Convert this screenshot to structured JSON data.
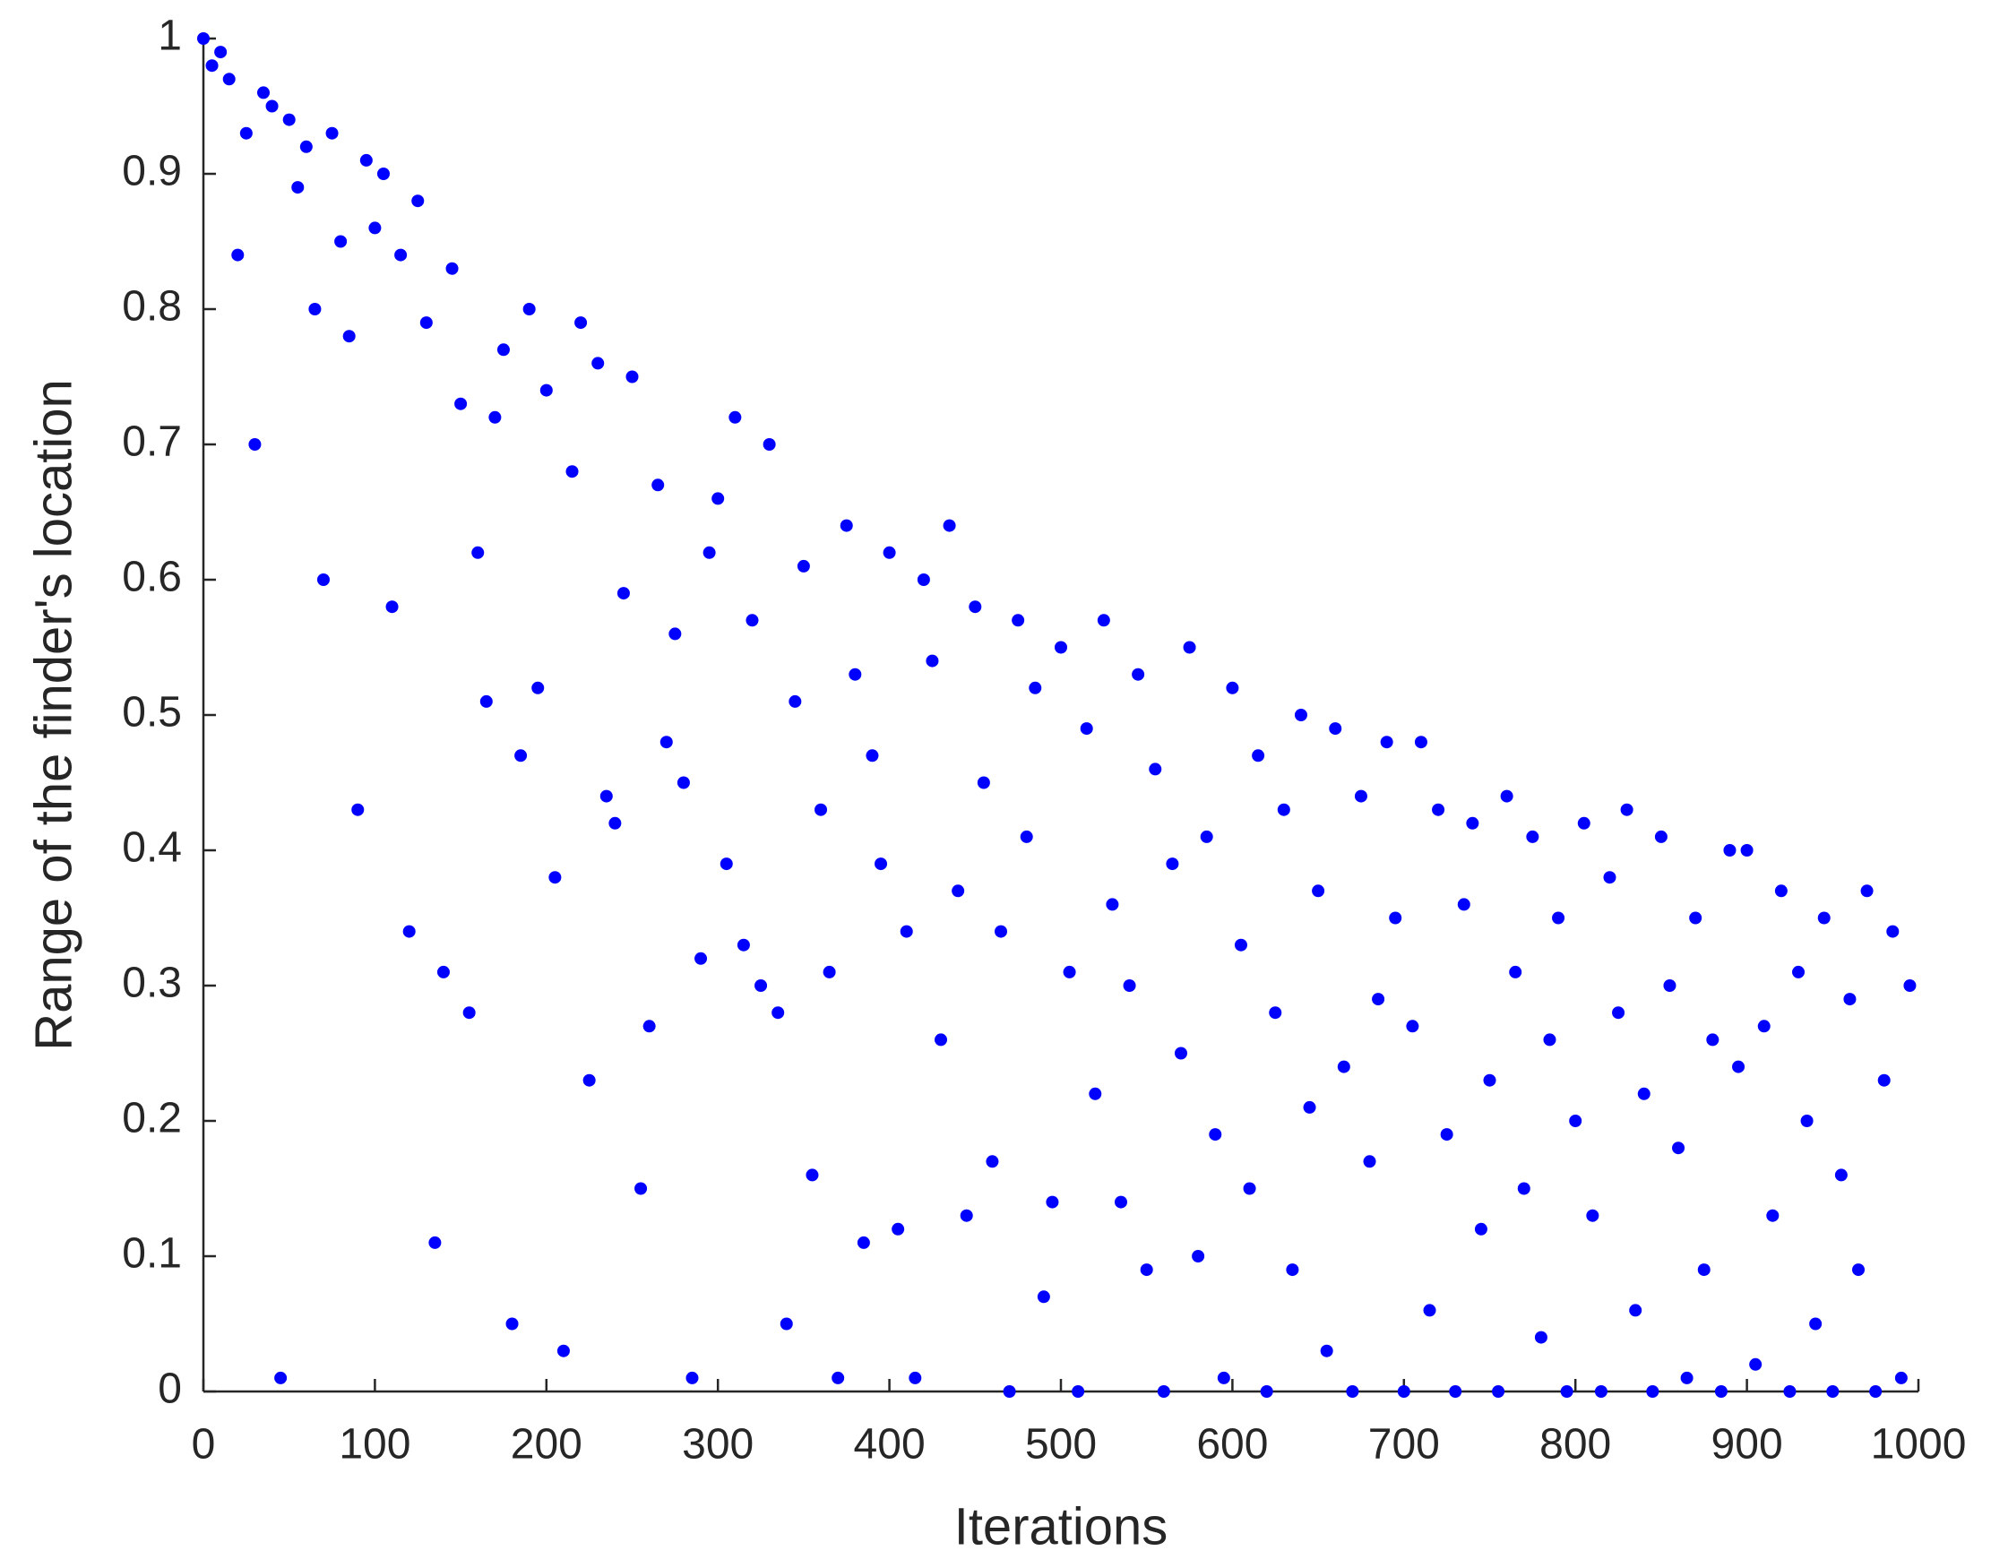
{
  "chart_data": {
    "type": "scatter",
    "x_label": "Iterations",
    "y_label": "Range of the finder's location",
    "color": "#0000ff",
    "xlim": [
      0,
      1000
    ],
    "xticks": [
      0,
      100,
      200,
      300,
      400,
      500,
      600,
      700,
      800,
      900,
      1000
    ],
    "ylim": [
      0,
      1
    ],
    "yticks": [
      0,
      0.1,
      0.2,
      0.3,
      0.4,
      0.5,
      0.6,
      0.7,
      0.8,
      0.9,
      1
    ],
    "x": [
      0,
      5,
      10,
      15,
      20,
      25,
      30,
      35,
      40,
      45,
      50,
      55,
      60,
      65,
      70,
      75,
      80,
      85,
      90,
      95,
      100,
      105,
      110,
      115,
      120,
      125,
      130,
      135,
      140,
      145,
      150,
      155,
      160,
      165,
      170,
      175,
      180,
      185,
      190,
      195,
      200,
      205,
      210,
      215,
      220,
      225,
      230,
      235,
      240,
      245,
      250,
      255,
      260,
      265,
      270,
      275,
      280,
      285,
      290,
      295,
      300,
      305,
      310,
      315,
      320,
      325,
      330,
      335,
      340,
      345,
      350,
      355,
      360,
      365,
      370,
      375,
      380,
      385,
      390,
      395,
      400,
      405,
      410,
      415,
      420,
      425,
      430,
      435,
      440,
      445,
      450,
      455,
      460,
      465,
      470,
      475,
      480,
      485,
      490,
      495,
      500,
      505,
      510,
      515,
      520,
      525,
      530,
      535,
      540,
      545,
      550,
      555,
      560,
      565,
      570,
      575,
      580,
      585,
      590,
      595,
      600,
      605,
      610,
      615,
      620,
      625,
      630,
      635,
      640,
      645,
      650,
      655,
      660,
      665,
      670,
      675,
      680,
      685,
      690,
      695,
      700,
      705,
      710,
      715,
      720,
      725,
      730,
      735,
      740,
      745,
      750,
      755,
      760,
      765,
      770,
      775,
      780,
      785,
      790,
      795,
      800,
      805,
      810,
      815,
      820,
      825,
      830,
      835,
      840,
      845,
      850,
      855,
      860,
      865,
      870,
      875,
      880,
      885,
      890,
      895,
      900,
      905,
      910,
      915,
      920,
      925,
      930,
      935,
      940,
      945,
      950,
      955,
      960,
      965,
      970,
      975,
      980,
      985,
      990,
      995
    ],
    "values": [
      1.0,
      0.98,
      0.99,
      0.97,
      0.84,
      0.93,
      0.7,
      0.96,
      0.95,
      0.01,
      0.94,
      0.89,
      0.92,
      0.8,
      0.6,
      0.93,
      0.85,
      0.78,
      0.43,
      0.91,
      0.86,
      0.9,
      0.58,
      0.84,
      0.34,
      0.88,
      0.79,
      0.11,
      0.31,
      0.83,
      0.73,
      0.28,
      0.62,
      0.51,
      0.72,
      0.77,
      0.05,
      0.47,
      0.8,
      0.52,
      0.74,
      0.38,
      0.03,
      0.68,
      0.79,
      0.23,
      0.76,
      0.44,
      0.42,
      0.59,
      0.75,
      0.15,
      0.27,
      0.67,
      0.48,
      0.56,
      0.45,
      0.01,
      0.32,
      0.62,
      0.66,
      0.39,
      0.72,
      0.33,
      0.57,
      0.3,
      0.7,
      0.28,
      0.05,
      0.51,
      0.61,
      0.16,
      0.43,
      0.31,
      0.01,
      0.64,
      0.53,
      0.11,
      0.47,
      0.39,
      0.62,
      0.12,
      0.34,
      0.01,
      0.6,
      0.54,
      0.26,
      0.64,
      0.37,
      0.13,
      0.58,
      0.45,
      0.17,
      0.34,
      0.0,
      0.57,
      0.41,
      0.52,
      0.07,
      0.14,
      0.55,
      0.31,
      0.0,
      0.49,
      0.22,
      0.57,
      0.36,
      0.14,
      0.3,
      0.53,
      0.09,
      0.46,
      0.0,
      0.39,
      0.25,
      0.55,
      0.1,
      0.41,
      0.19,
      0.01,
      0.52,
      0.33,
      0.15,
      0.47,
      0.0,
      0.28,
      0.43,
      0.09,
      0.5,
      0.21,
      0.37,
      0.03,
      0.49,
      0.24,
      0.0,
      0.44,
      0.17,
      0.29,
      0.48,
      0.35,
      0.0,
      0.27,
      0.48,
      0.06,
      0.43,
      0.19,
      0.0,
      0.36,
      0.42,
      0.12,
      0.23,
      0.0,
      0.44,
      0.31,
      0.15,
      0.41,
      0.04,
      0.26,
      0.35,
      0.0,
      0.2,
      0.42,
      0.13,
      0.0,
      0.38,
      0.28,
      0.43,
      0.06,
      0.22,
      0.0,
      0.41,
      0.3,
      0.18,
      0.01,
      0.35,
      0.09,
      0.26,
      0.0,
      0.4,
      0.24,
      0.4,
      0.02,
      0.27,
      0.13,
      0.37,
      0.0,
      0.31,
      0.2,
      0.05,
      0.35,
      0.0,
      0.16,
      0.29,
      0.09,
      0.37,
      0.0,
      0.23,
      0.34,
      0.01,
      0.3
    ]
  }
}
